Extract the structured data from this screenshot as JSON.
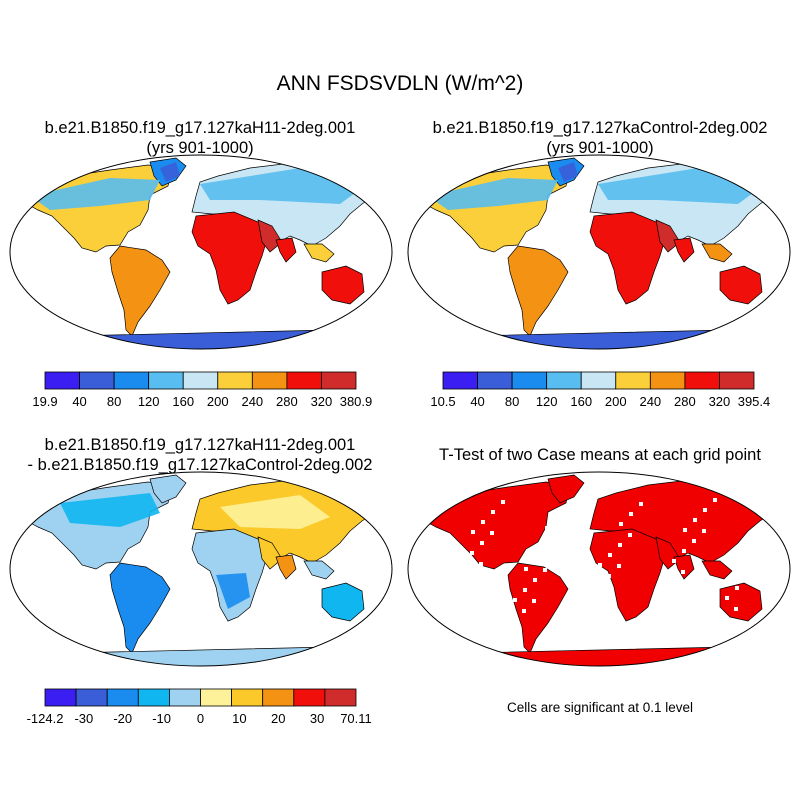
{
  "main_title": "ANN FSDSVDLN (W/m^2)",
  "panels": {
    "top_left": {
      "title_line1": "b.e21.B1850.f19_g17.127kaH11-2deg.001",
      "title_line2": "(yrs 901-1000)",
      "colorbar_labels": [
        "19.9",
        "40",
        "80",
        "120",
        "160",
        "200",
        "240",
        "280",
        "320",
        "380.9"
      ]
    },
    "top_right": {
      "title_line1": "b.e21.B1850.f19_g17.127kaControl-2deg.002",
      "title_line2": "(yrs 901-1000)",
      "colorbar_labels": [
        "10.5",
        "40",
        "80",
        "120",
        "160",
        "200",
        "240",
        "280",
        "320",
        "395.4"
      ]
    },
    "bottom_left": {
      "title_line1": "b.e21.B1850.f19_g17.127kaH11-2deg.001",
      "title_line2": "- b.e21.B1850.f19_g17.127kaControl-2deg.002",
      "colorbar_labels": [
        "-124.2",
        "-30",
        "-20",
        "-10",
        "0",
        "10",
        "20",
        "30",
        "70.11"
      ]
    },
    "bottom_right": {
      "title": "T-Test of two Case means at each grid point",
      "note": "Cells are significant at 0.1 level"
    }
  },
  "colors": {
    "abs_scale": [
      "#3b1ff2",
      "#3a5ed8",
      "#1a8cf0",
      "#58bdf0",
      "#c8e6f4",
      "#fbcf3a",
      "#f49214",
      "#f00f0a",
      "#d02c2c"
    ],
    "diff_scale": [
      "#3b1ff2",
      "#3a5ed8",
      "#1a8cf0",
      "#10b6f0",
      "#9fd2f0",
      "#fdf29a",
      "#fbc92a",
      "#f49214",
      "#f00f0a",
      "#d02c2c"
    ],
    "significant": "#f00000"
  }
}
